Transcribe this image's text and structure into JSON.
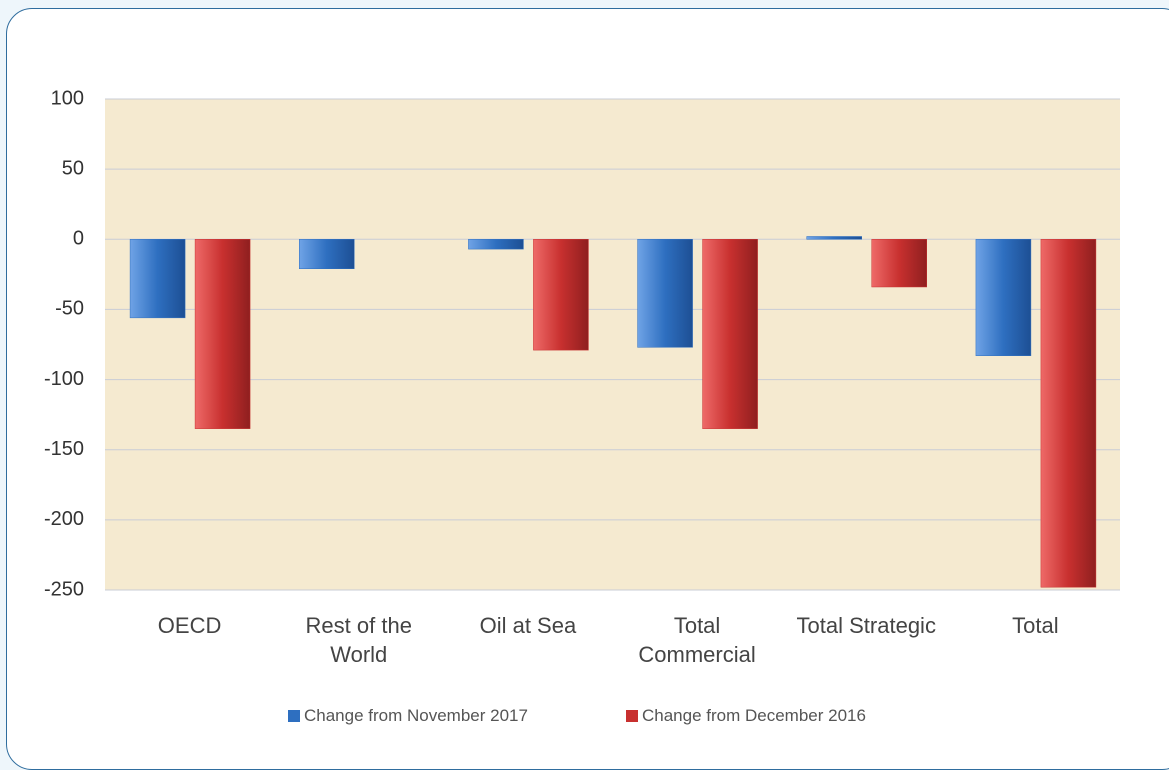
{
  "chart_data": {
    "type": "bar",
    "categories": [
      "OECD",
      "Rest of the World",
      "Oil at Sea",
      "Total Commercial",
      "Total Strategic",
      "Total"
    ],
    "series": [
      {
        "name": "Change from November 2017",
        "color": "#2e6fc0",
        "values": [
          -56,
          -21,
          -7,
          -77,
          2,
          -83
        ]
      },
      {
        "name": "Change from December 2016",
        "color": "#c8302f",
        "values": [
          -135,
          null,
          -79,
          -135,
          -34,
          -248
        ]
      }
    ],
    "ylim": [
      -250,
      100
    ],
    "yticks": [
      -250,
      -200,
      -150,
      -100,
      -50,
      0,
      50,
      100
    ],
    "grid": true
  }
}
